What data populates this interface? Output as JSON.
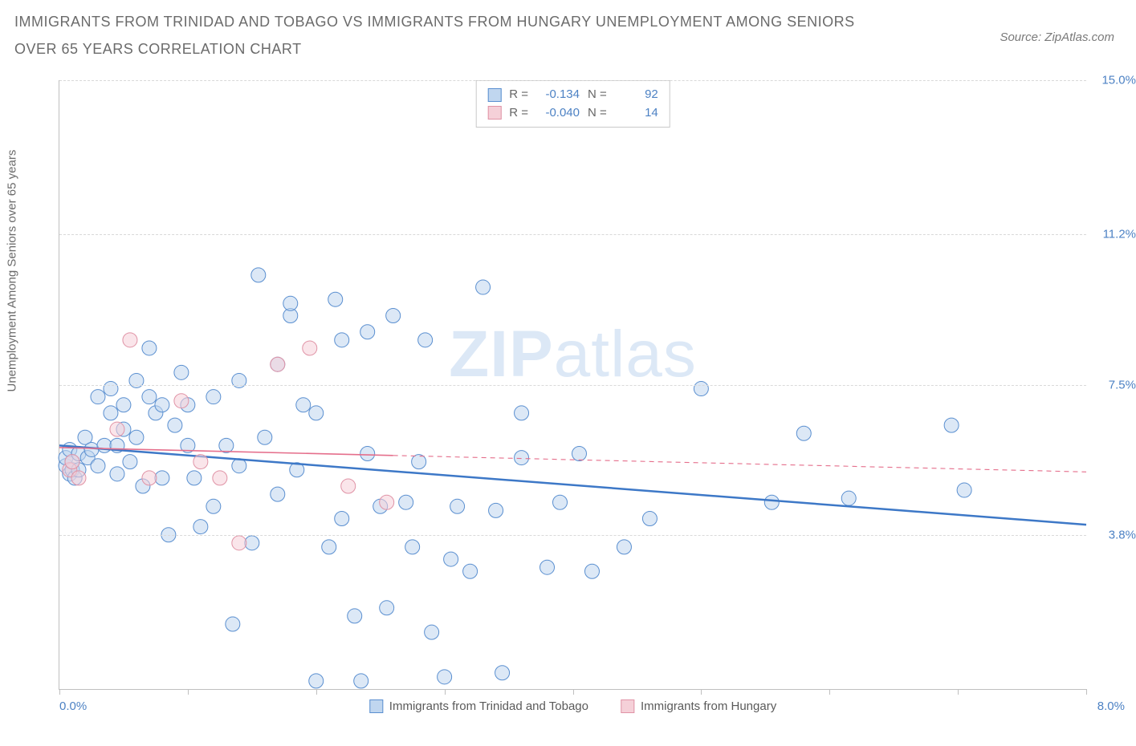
{
  "header": {
    "title": "IMMIGRANTS FROM TRINIDAD AND TOBAGO VS IMMIGRANTS FROM HUNGARY UNEMPLOYMENT AMONG SENIORS OVER 65 YEARS CORRELATION CHART",
    "source": "Source: ZipAtlas.com"
  },
  "chart": {
    "type": "scatter",
    "ylabel": "Unemployment Among Seniors over 65 years",
    "xlim": [
      0,
      8.0
    ],
    "ylim": [
      0,
      15.0
    ],
    "xaxis_min_label": "0.0%",
    "xaxis_max_label": "8.0%",
    "xtick_positions": [
      0,
      1.0,
      2.0,
      3.0,
      4.0,
      5.0,
      6.0,
      7.0,
      8.0
    ],
    "yticks": [
      {
        "v": 3.8,
        "label": "3.8%"
      },
      {
        "v": 7.5,
        "label": "7.5%"
      },
      {
        "v": 11.2,
        "label": "11.2%"
      },
      {
        "v": 15.0,
        "label": "15.0%"
      }
    ],
    "grid_color": "#d9d9d9",
    "background_color": "#ffffff",
    "marker_radius": 9,
    "marker_opacity": 0.55,
    "series": [
      {
        "name": "Immigrants from Trinidad and Tobago",
        "color_fill": "#c0d6ef",
        "color_stroke": "#5a8fd0",
        "r_label": "R =",
        "r_value": "-0.134",
        "n_label": "N =",
        "n_value": "92",
        "trend": {
          "x1": 0.0,
          "y1": 6.0,
          "x2": 8.0,
          "y2": 4.05,
          "solid_until_x": 8.0,
          "stroke": "#3d78c7",
          "width": 2.5
        },
        "points": [
          [
            0.05,
            5.5
          ],
          [
            0.05,
            5.7
          ],
          [
            0.08,
            5.3
          ],
          [
            0.08,
            5.9
          ],
          [
            0.1,
            5.4
          ],
          [
            0.1,
            5.6
          ],
          [
            0.12,
            5.2
          ],
          [
            0.15,
            5.8
          ],
          [
            0.15,
            5.4
          ],
          [
            0.2,
            6.2
          ],
          [
            0.22,
            5.7
          ],
          [
            0.25,
            5.9
          ],
          [
            0.3,
            7.2
          ],
          [
            0.3,
            5.5
          ],
          [
            0.35,
            6.0
          ],
          [
            0.4,
            7.4
          ],
          [
            0.4,
            6.8
          ],
          [
            0.45,
            6.0
          ],
          [
            0.45,
            5.3
          ],
          [
            0.5,
            7.0
          ],
          [
            0.5,
            6.4
          ],
          [
            0.55,
            5.6
          ],
          [
            0.6,
            7.6
          ],
          [
            0.6,
            6.2
          ],
          [
            0.65,
            5.0
          ],
          [
            0.7,
            8.4
          ],
          [
            0.7,
            7.2
          ],
          [
            0.75,
            6.8
          ],
          [
            0.8,
            7.0
          ],
          [
            0.8,
            5.2
          ],
          [
            0.85,
            3.8
          ],
          [
            0.9,
            6.5
          ],
          [
            0.95,
            7.8
          ],
          [
            1.0,
            7.0
          ],
          [
            1.0,
            6.0
          ],
          [
            1.05,
            5.2
          ],
          [
            1.1,
            4.0
          ],
          [
            1.2,
            7.2
          ],
          [
            1.2,
            4.5
          ],
          [
            1.3,
            6.0
          ],
          [
            1.35,
            1.6
          ],
          [
            1.4,
            7.6
          ],
          [
            1.4,
            5.5
          ],
          [
            1.5,
            3.6
          ],
          [
            1.55,
            10.2
          ],
          [
            1.6,
            6.2
          ],
          [
            1.7,
            8.0
          ],
          [
            1.7,
            4.8
          ],
          [
            1.8,
            9.2
          ],
          [
            1.8,
            9.5
          ],
          [
            1.85,
            5.4
          ],
          [
            1.9,
            7.0
          ],
          [
            2.0,
            0.2
          ],
          [
            2.0,
            6.8
          ],
          [
            2.1,
            3.5
          ],
          [
            2.15,
            9.6
          ],
          [
            2.2,
            8.6
          ],
          [
            2.2,
            4.2
          ],
          [
            2.3,
            1.8
          ],
          [
            2.35,
            0.2
          ],
          [
            2.4,
            8.8
          ],
          [
            2.4,
            5.8
          ],
          [
            2.5,
            4.5
          ],
          [
            2.55,
            2.0
          ],
          [
            2.6,
            9.2
          ],
          [
            2.7,
            4.6
          ],
          [
            2.75,
            3.5
          ],
          [
            2.8,
            5.6
          ],
          [
            2.85,
            8.6
          ],
          [
            2.9,
            1.4
          ],
          [
            3.0,
            0.3
          ],
          [
            3.05,
            3.2
          ],
          [
            3.1,
            4.5
          ],
          [
            3.2,
            2.9
          ],
          [
            3.3,
            9.9
          ],
          [
            3.4,
            4.4
          ],
          [
            3.45,
            0.4
          ],
          [
            3.6,
            6.8
          ],
          [
            3.6,
            5.7
          ],
          [
            3.8,
            3.0
          ],
          [
            3.9,
            4.6
          ],
          [
            4.05,
            5.8
          ],
          [
            4.15,
            2.9
          ],
          [
            4.4,
            3.5
          ],
          [
            4.6,
            4.2
          ],
          [
            5.0,
            7.4
          ],
          [
            5.55,
            4.6
          ],
          [
            5.8,
            6.3
          ],
          [
            6.15,
            4.7
          ],
          [
            6.95,
            6.5
          ],
          [
            7.05,
            4.9
          ]
        ]
      },
      {
        "name": "Immigrants from Hungary",
        "color_fill": "#f5d0d8",
        "color_stroke": "#e093a6",
        "r_label": "R =",
        "r_value": "-0.040",
        "n_label": "N =",
        "n_value": "14",
        "trend": {
          "x1": 0.0,
          "y1": 5.95,
          "x2": 8.0,
          "y2": 5.35,
          "solid_until_x": 2.6,
          "stroke": "#e56f8c",
          "width": 1.6
        },
        "points": [
          [
            0.08,
            5.4
          ],
          [
            0.1,
            5.6
          ],
          [
            0.15,
            5.2
          ],
          [
            0.45,
            6.4
          ],
          [
            0.55,
            8.6
          ],
          [
            0.7,
            5.2
          ],
          [
            0.95,
            7.1
          ],
          [
            1.1,
            5.6
          ],
          [
            1.25,
            5.2
          ],
          [
            1.4,
            3.6
          ],
          [
            1.7,
            8.0
          ],
          [
            1.95,
            8.4
          ],
          [
            2.25,
            5.0
          ],
          [
            2.55,
            4.6
          ]
        ]
      }
    ],
    "watermark": {
      "text_bold": "ZIP",
      "text_light": "atlas"
    }
  }
}
